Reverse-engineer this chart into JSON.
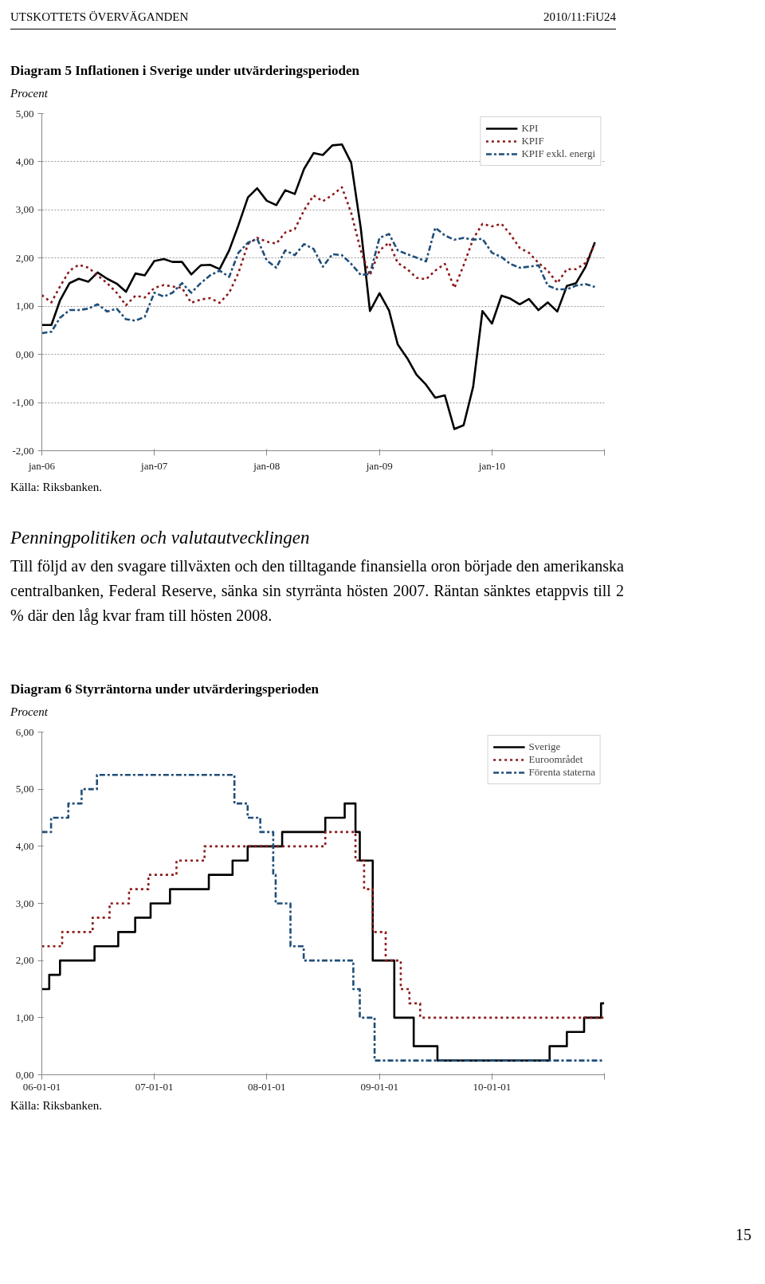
{
  "chart_data": [
    {
      "type": "line",
      "title": "Diagram 5 Inflationen i Sverige under utvärderingsperioden",
      "ylabel": "Procent",
      "annotations": [
        "UTSKOTTETS ÖVERVÄGANDEN",
        "2010/11:FiU24",
        "Källa: Riksbanken."
      ],
      "x": [
        "2006-01",
        "2006-02",
        "2006-03",
        "2006-04",
        "2006-05",
        "2006-06",
        "2006-07",
        "2006-08",
        "2006-09",
        "2006-10",
        "2006-11",
        "2006-12",
        "2007-01",
        "2007-02",
        "2007-03",
        "2007-04",
        "2007-05",
        "2007-06",
        "2007-07",
        "2007-08",
        "2007-09",
        "2007-10",
        "2007-11",
        "2007-12",
        "2008-01",
        "2008-02",
        "2008-03",
        "2008-04",
        "2008-05",
        "2008-06",
        "2008-07",
        "2008-08",
        "2008-09",
        "2008-10",
        "2008-11",
        "2008-12",
        "2009-01",
        "2009-02",
        "2009-03",
        "2009-04",
        "2009-05",
        "2009-06",
        "2009-07",
        "2009-08",
        "2009-09",
        "2009-10",
        "2009-11",
        "2009-12",
        "2010-01",
        "2010-02",
        "2010-03",
        "2010-04",
        "2010-05",
        "2010-06",
        "2010-07",
        "2010-08",
        "2010-09",
        "2010-10",
        "2010-11",
        "2010-12"
      ],
      "series": [
        {
          "name": "KPI",
          "color": "#000000",
          "line_style": "solid",
          "values": [
            0.61,
            0.61,
            1.12,
            1.48,
            1.57,
            1.51,
            1.7,
            1.57,
            1.47,
            1.3,
            1.68,
            1.64,
            1.94,
            1.98,
            1.92,
            1.92,
            1.66,
            1.85,
            1.86,
            1.77,
            2.16,
            2.68,
            3.26,
            3.45,
            3.19,
            3.1,
            3.41,
            3.33,
            3.85,
            4.18,
            4.14,
            4.34,
            4.36,
            3.98,
            2.63,
            0.9,
            1.27,
            0.91,
            0.21,
            -0.08,
            -0.42,
            -0.63,
            -0.9,
            -0.85,
            -1.55,
            -1.47,
            -0.67,
            0.9,
            0.64,
            1.22,
            1.16,
            1.04,
            1.15,
            0.92,
            1.08,
            0.89,
            1.42,
            1.48,
            1.82,
            2.33
          ]
        },
        {
          "name": "KPIF",
          "color": "#8b1a1a",
          "line_style": "dotted",
          "values": [
            1.23,
            1.08,
            1.41,
            1.74,
            1.86,
            1.8,
            1.64,
            1.48,
            1.28,
            1.02,
            1.22,
            1.18,
            1.38,
            1.44,
            1.41,
            1.38,
            1.07,
            1.14,
            1.17,
            1.07,
            1.28,
            1.69,
            2.29,
            2.42,
            2.34,
            2.3,
            2.53,
            2.6,
            2.99,
            3.3,
            3.18,
            3.31,
            3.47,
            2.94,
            2.16,
            1.64,
            2.16,
            2.32,
            1.9,
            1.77,
            1.59,
            1.56,
            1.74,
            1.88,
            1.38,
            1.85,
            2.4,
            2.71,
            2.66,
            2.71,
            2.5,
            2.21,
            2.11,
            1.9,
            1.74,
            1.48,
            1.77,
            1.77,
            1.9,
            2.29
          ]
        },
        {
          "name": "KPIF exkl. energi",
          "color": "#1f4e79",
          "line_style": "dashed",
          "values": [
            0.44,
            0.47,
            0.76,
            0.92,
            0.92,
            0.95,
            1.04,
            0.89,
            0.95,
            0.73,
            0.7,
            0.78,
            1.28,
            1.2,
            1.28,
            1.48,
            1.28,
            1.48,
            1.64,
            1.74,
            1.61,
            2.11,
            2.32,
            2.4,
            1.95,
            1.8,
            2.16,
            2.06,
            2.29,
            2.19,
            1.82,
            2.08,
            2.06,
            1.88,
            1.65,
            1.67,
            2.42,
            2.5,
            2.16,
            2.08,
            2.01,
            1.93,
            2.63,
            2.47,
            2.38,
            2.42,
            2.38,
            2.4,
            2.11,
            2.02,
            1.88,
            1.8,
            1.82,
            1.85,
            1.43,
            1.35,
            1.35,
            1.43,
            1.46,
            1.4
          ]
        }
      ],
      "xlim": [
        "2006-01",
        "2011-01"
      ],
      "xticks": [
        {
          "value": "2006-01",
          "label": "jan-06"
        },
        {
          "value": "2007-01",
          "label": "jan-07"
        },
        {
          "value": "2008-01",
          "label": "jan-08"
        },
        {
          "value": "2009-01",
          "label": "jan-09"
        },
        {
          "value": "2010-01",
          "label": "jan-10"
        },
        {
          "value": "2011-01",
          "label": null
        }
      ],
      "ylim": [
        -2,
        5
      ],
      "yticks": [
        {
          "value": -2,
          "label": "-2,00"
        },
        {
          "value": -1,
          "label": "-1,00"
        },
        {
          "value": 0,
          "label": "0,00"
        },
        {
          "value": 1,
          "label": "1,00"
        },
        {
          "value": 2,
          "label": "2,00"
        },
        {
          "value": 3,
          "label": "3,00"
        },
        {
          "value": 4,
          "label": "4,00"
        },
        {
          "value": 5,
          "label": "5,00"
        }
      ],
      "grid": "y",
      "legend": "top right"
    },
    {
      "type": "other",
      "title": "Penningpolitiken och valutautvecklingen",
      "annotations": [
        "Till följd av den svagare tillväxten och den tilltagande finansiella oron började den amerikanska centralbanken, Federal Reserve, sänka sin styrränta hösten 2007. Räntan sänktes etappvis till 2 % där den låg kvar fram till hösten 2008."
      ]
    },
    {
      "type": "step",
      "title": "Diagram 6 Styrräntorna under utvärderingsperioden",
      "ylabel": "Procent",
      "annotations": [
        "Källa: Riksbanken.",
        "15"
      ],
      "series": [
        {
          "name": "Sverige",
          "color": "#000000",
          "line_style": "solid",
          "x": [
            "2006-01-01",
            "2006-01-25",
            "2006-03-01",
            "2006-06-21",
            "2006-09-06",
            "2006-10-31",
            "2006-12-20",
            "2007-02-21",
            "2007-06-27",
            "2007-09-12",
            "2007-10-31",
            "2008-02-20",
            "2008-07-09",
            "2008-09-10",
            "2008-10-15",
            "2008-10-29",
            "2008-12-10",
            "2009-02-18",
            "2009-04-22",
            "2009-07-08",
            "2010-07-07",
            "2010-09-01",
            "2010-10-27",
            "2010-12-21",
            "2010-12-31"
          ],
          "values": [
            1.5,
            1.75,
            2.0,
            2.25,
            2.5,
            2.75,
            3.0,
            3.25,
            3.5,
            3.75,
            4.0,
            4.25,
            4.5,
            4.75,
            4.25,
            3.75,
            2.0,
            1.0,
            0.5,
            0.25,
            0.5,
            0.75,
            1.0,
            1.25,
            1.25
          ]
        },
        {
          "name": "Euroområdet",
          "color": "#8b1a1a",
          "line_style": "dotted",
          "x": [
            "2006-01-01",
            "2006-03-08",
            "2006-06-15",
            "2006-08-09",
            "2006-10-11",
            "2006-12-13",
            "2007-03-14",
            "2007-06-13",
            "2008-07-09",
            "2008-10-15",
            "2008-11-12",
            "2008-12-10",
            "2009-01-21",
            "2009-03-11",
            "2009-04-08",
            "2009-05-13",
            "2010-12-31"
          ],
          "values": [
            2.25,
            2.5,
            2.75,
            3.0,
            3.25,
            3.5,
            3.75,
            4.0,
            4.25,
            3.75,
            3.25,
            2.5,
            2.0,
            1.5,
            1.25,
            1.0,
            1.0
          ]
        },
        {
          "name": "Förenta staterna",
          "color": "#1f4e79",
          "line_style": "dashed",
          "x": [
            "2006-01-01",
            "2006-01-31",
            "2006-03-28",
            "2006-05-10",
            "2006-06-29",
            "2007-09-18",
            "2007-10-31",
            "2007-12-11",
            "2008-01-22",
            "2008-01-30",
            "2008-03-18",
            "2008-04-30",
            "2008-10-08",
            "2008-10-29",
            "2008-12-16",
            "2010-12-31"
          ],
          "values": [
            4.25,
            4.5,
            4.75,
            5.0,
            5.25,
            4.75,
            4.5,
            4.25,
            3.5,
            3.0,
            2.25,
            2.0,
            1.5,
            1.0,
            0.25,
            0.25
          ]
        }
      ],
      "xlim": [
        "2006-01-01",
        "2011-01-01"
      ],
      "xticks": [
        {
          "value": "2006-01-01",
          "label": "06-01-01"
        },
        {
          "value": "2007-01-01",
          "label": "07-01-01"
        },
        {
          "value": "2008-01-01",
          "label": "08-01-01"
        },
        {
          "value": "2009-01-01",
          "label": "09-01-01"
        },
        {
          "value": "2010-01-01",
          "label": "10-01-01"
        },
        {
          "value": "2011-01-01",
          "label": null
        }
      ],
      "ylim": [
        0,
        6
      ],
      "yticks": [
        {
          "value": 0,
          "label": "0,00"
        },
        {
          "value": 1,
          "label": "1,00"
        },
        {
          "value": 2,
          "label": "2,00"
        },
        {
          "value": 3,
          "label": "3,00"
        },
        {
          "value": 4,
          "label": "4,00"
        },
        {
          "value": 5,
          "label": "5,00"
        },
        {
          "value": 6,
          "label": "6,00"
        }
      ],
      "legend": "top right"
    }
  ]
}
